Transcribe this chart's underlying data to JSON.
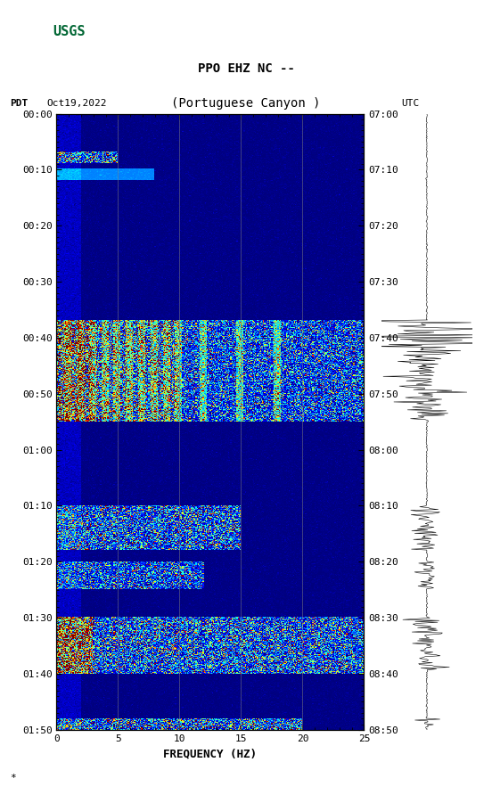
{
  "title_line1": "PPO EHZ NC --",
  "title_line2": "(Portuguese Canyon )",
  "pdt_label": "PDT",
  "date_label": "Oct19,2022",
  "utc_label": "UTC",
  "xlabel": "FREQUENCY (HZ)",
  "freq_min": 0,
  "freq_max": 25,
  "ytick_pdt": [
    "00:00",
    "00:10",
    "00:20",
    "00:30",
    "00:40",
    "00:50",
    "01:00",
    "01:10",
    "01:20",
    "01:30",
    "01:40",
    "01:50"
  ],
  "ytick_utc": [
    "07:00",
    "07:10",
    "07:20",
    "07:30",
    "07:40",
    "07:50",
    "08:00",
    "08:10",
    "08:20",
    "08:30",
    "08:40",
    "08:50"
  ],
  "xticks": [
    0,
    5,
    10,
    15,
    20,
    25
  ],
  "grid_freqs": [
    5,
    10,
    15,
    20
  ],
  "fig_bg": "#ffffff",
  "colormap": "jet",
  "usgs_green": "#006633",
  "title_fontsize": 10,
  "tick_fontsize": 8,
  "label_fontsize": 9,
  "watermark": "*"
}
